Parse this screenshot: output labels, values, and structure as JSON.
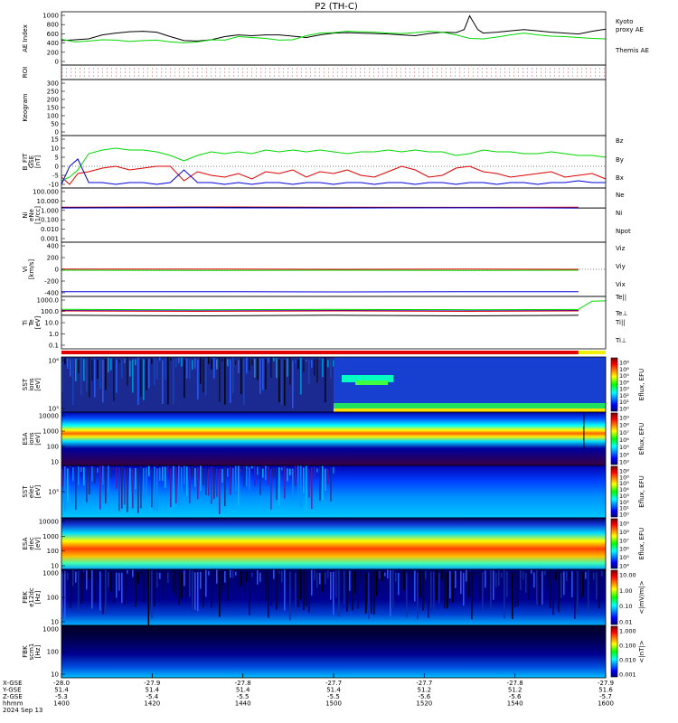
{
  "title": "P2 (TH-C)",
  "chart_data": [
    {
      "panel": "ae",
      "type": "line",
      "ylabel": "AE Index",
      "yticks": [
        "1000",
        "800",
        "600",
        "400",
        "200",
        "0"
      ],
      "legend": [
        {
          "label": "Kyoto",
          "color": "#00d800"
        },
        {
          "label": "proxy AE",
          "color": "#00d800"
        },
        {
          "label": "Themis AE",
          "color": "#000000"
        }
      ],
      "series": [
        {
          "name": "Themis AE",
          "color": "#000000",
          "x": [
            1400,
            1405,
            1410,
            1415,
            1420,
            1425,
            1430,
            1435,
            1440,
            1445,
            1450,
            1455,
            1460,
            1465,
            1470,
            1475,
            1480,
            1485,
            1490,
            1495,
            1500,
            1505,
            1510,
            1515,
            1520,
            1525,
            1530,
            1535,
            1540,
            1545,
            1548,
            1550,
            1553,
            1555,
            1560,
            1565,
            1570,
            1575,
            1580,
            1585,
            1590,
            1595,
            1600
          ],
          "y": [
            430,
            450,
            470,
            560,
            600,
            630,
            640,
            620,
            520,
            430,
            420,
            450,
            520,
            560,
            540,
            560,
            560,
            530,
            500,
            560,
            600,
            610,
            600,
            590,
            580,
            560,
            540,
            590,
            620,
            610,
            680,
            990,
            680,
            600,
            620,
            650,
            680,
            650,
            620,
            600,
            580,
            640,
            690
          ]
        },
        {
          "name": "Kyoto proxy AE",
          "color": "#00d800",
          "x": [
            1400,
            1405,
            1410,
            1415,
            1420,
            1425,
            1430,
            1435,
            1440,
            1445,
            1450,
            1455,
            1460,
            1465,
            1470,
            1475,
            1480,
            1485,
            1490,
            1495,
            1500,
            1505,
            1510,
            1515,
            1520,
            1525,
            1530,
            1535,
            1540,
            1545,
            1550,
            1555,
            1560,
            1565,
            1570,
            1575,
            1580,
            1585,
            1590,
            1595,
            1600
          ],
          "y": [
            460,
            400,
            420,
            450,
            440,
            410,
            430,
            440,
            400,
            380,
            400,
            450,
            440,
            520,
            500,
            480,
            440,
            450,
            540,
            600,
            610,
            640,
            630,
            620,
            600,
            590,
            610,
            640,
            620,
            560,
            480,
            470,
            510,
            560,
            600,
            560,
            530,
            520,
            500,
            480,
            470
          ]
        }
      ]
    },
    {
      "panel": "roi",
      "type": "line",
      "ylabel": "ROI"
    },
    {
      "panel": "keogram",
      "type": "heatmap",
      "ylabel": "Keogram",
      "yticks": [
        "300",
        "250",
        "200",
        "150",
        "100",
        "50",
        "0"
      ]
    },
    {
      "panel": "bfield",
      "type": "line",
      "ylabel": [
        "B_FIT",
        "GSE",
        "[nT]"
      ],
      "yticks": [
        "15",
        "10",
        "5",
        "0",
        "-5",
        "-10"
      ],
      "legend": [
        {
          "label": "Bz",
          "color": "#e00000"
        },
        {
          "label": "By",
          "color": "#00d800"
        },
        {
          "label": "Bx",
          "color": "#0000e0"
        }
      ],
      "series": [
        {
          "name": "Bz",
          "color": "#e00000",
          "x": [
            1400,
            1403,
            1406,
            1410,
            1415,
            1420,
            1425,
            1430,
            1435,
            1440,
            1445,
            1450,
            1455,
            1460,
            1465,
            1470,
            1475,
            1480,
            1485,
            1490,
            1495,
            1500,
            1505,
            1510,
            1515,
            1520,
            1525,
            1530,
            1535,
            1540,
            1545,
            1550,
            1555,
            1560,
            1565,
            1570,
            1575,
            1580,
            1585,
            1590,
            1595,
            1600
          ],
          "y": [
            -6,
            -10,
            -4,
            -3,
            -1,
            0,
            -2,
            -1,
            0,
            0,
            -8,
            -3,
            -5,
            -6,
            -4,
            -7,
            -3,
            -4,
            -2,
            -6,
            -3,
            -4,
            -2,
            -5,
            -6,
            -3,
            0,
            -2,
            -6,
            -5,
            -1,
            0,
            -3,
            -4,
            -6,
            -5,
            -4,
            -3,
            -6,
            -5,
            -4,
            -7
          ]
        },
        {
          "name": "By",
          "color": "#00d800",
          "x": [
            1400,
            1403,
            1406,
            1410,
            1415,
            1420,
            1425,
            1430,
            1435,
            1440,
            1445,
            1450,
            1455,
            1460,
            1465,
            1470,
            1475,
            1480,
            1485,
            1490,
            1495,
            1500,
            1505,
            1510,
            1515,
            1520,
            1525,
            1530,
            1535,
            1540,
            1545,
            1550,
            1555,
            1560,
            1565,
            1570,
            1575,
            1580,
            1585,
            1590,
            1595,
            1600
          ],
          "y": [
            -8,
            -6,
            -2,
            7,
            9,
            10,
            9,
            9,
            8,
            6,
            3,
            6,
            8,
            7,
            8,
            7,
            9,
            8,
            9,
            8,
            9,
            8,
            7,
            8,
            8,
            9,
            8,
            9,
            8,
            8,
            6,
            7,
            9,
            8,
            8,
            7,
            7,
            8,
            7,
            6,
            6,
            5
          ]
        },
        {
          "name": "Bx",
          "color": "#0000e0",
          "x": [
            1400,
            1403,
            1406,
            1410,
            1415,
            1420,
            1425,
            1430,
            1435,
            1440,
            1445,
            1450,
            1455,
            1460,
            1465,
            1470,
            1475,
            1480,
            1485,
            1490,
            1495,
            1500,
            1505,
            1510,
            1515,
            1520,
            1525,
            1530,
            1535,
            1540,
            1545,
            1550,
            1555,
            1560,
            1565,
            1570,
            1575,
            1580,
            1585,
            1590,
            1595,
            1600
          ],
          "y": [
            -10,
            0,
            4,
            -9,
            -9,
            -10,
            -9,
            -9,
            -10,
            -9,
            -2,
            -9,
            -9,
            -10,
            -9,
            -10,
            -9,
            -9,
            -10,
            -9,
            -9,
            -10,
            -9,
            -9,
            -10,
            -9,
            -9,
            -10,
            -9,
            -9,
            -10,
            -9,
            -9,
            -10,
            -9,
            -9,
            -10,
            -9,
            -9,
            -8,
            -9,
            -9
          ]
        }
      ]
    },
    {
      "panel": "density",
      "type": "line",
      "ylabel": [
        "Ni",
        "eNe",
        "[1/cc]"
      ],
      "yticks": [
        "100.000",
        "10.000",
        "1.000",
        "0.100",
        "0.010",
        "0.001"
      ],
      "legend": [
        {
          "label": "Ne",
          "color": "#e00000"
        },
        {
          "label": "Ni",
          "color": "#000000"
        },
        {
          "label": "Npot",
          "color": "#0000e0"
        }
      ],
      "series": [
        {
          "name": "Ne",
          "color": "#e00000",
          "x": [
            1400,
            1450,
            1500,
            1550,
            1590
          ],
          "y": [
            2.2,
            2.3,
            2.2,
            2.1,
            2.2
          ]
        },
        {
          "name": "Ni",
          "color": "#000000",
          "x": [
            1400,
            1450,
            1500,
            1550,
            1590,
            1600
          ],
          "y": [
            2.0,
            2.1,
            2.0,
            2.0,
            1.8,
            1.8
          ]
        },
        {
          "name": "Npot",
          "color": "#0000e0",
          "x": [
            1400,
            1450,
            1500,
            1550,
            1590
          ],
          "y": [
            1.8,
            1.9,
            1.8,
            1.9,
            1.8
          ]
        }
      ]
    },
    {
      "panel": "velocity",
      "type": "line",
      "ylabel": [
        "Vi",
        "[km/s]"
      ],
      "yticks": [
        "400",
        "200",
        "0",
        "-200",
        "-400"
      ],
      "legend": [
        {
          "label": "Viz",
          "color": "#e00000"
        },
        {
          "label": "Viy",
          "color": "#00d800"
        },
        {
          "label": "Vix",
          "color": "#0000e0"
        }
      ],
      "series": [
        {
          "name": "Viz",
          "color": "#e00000",
          "x": [
            1400,
            1450,
            1500,
            1550,
            1590
          ],
          "y": [
            5,
            5,
            0,
            5,
            0
          ]
        },
        {
          "name": "Viy",
          "color": "#00d800",
          "x": [
            1400,
            1450,
            1500,
            1550,
            1590
          ],
          "y": [
            -15,
            -20,
            -15,
            -20,
            -15
          ]
        },
        {
          "name": "Vix",
          "color": "#0000e0",
          "x": [
            1400,
            1450,
            1500,
            1550,
            1590
          ],
          "y": [
            -380,
            -380,
            -385,
            -380,
            -380
          ]
        }
      ]
    },
    {
      "panel": "temperature",
      "type": "line",
      "ylabel": [
        "Ti",
        "Te",
        "[eV]"
      ],
      "yticks": [
        "1000.0",
        "100.0",
        "10.0",
        "1.0",
        "0.1"
      ],
      "legend": [
        {
          "label": "Te||",
          "color": "#000000"
        },
        {
          "label": "Te⊥",
          "color": "#e00000"
        },
        {
          "label": "Ti||",
          "color": "#00d800"
        },
        {
          "label": "Ti⊥",
          "color": "#0000e0"
        }
      ],
      "series": [
        {
          "name": "Ti||",
          "color": "#00d800",
          "x": [
            1400,
            1450,
            1500,
            1550,
            1590,
            1595,
            1600
          ],
          "y": [
            150,
            140,
            150,
            140,
            150,
            800,
            850
          ]
        },
        {
          "name": "Ti⊥",
          "color": "#0000e0",
          "x": [
            1400,
            1450,
            1500,
            1550,
            1590
          ],
          "y": [
            120,
            110,
            120,
            110,
            120
          ]
        },
        {
          "name": "Te⊥",
          "color": "#e00000",
          "x": [
            1400,
            1450,
            1500,
            1550,
            1590
          ],
          "y": [
            110,
            100,
            110,
            100,
            110
          ]
        },
        {
          "name": "Te||",
          "color": "#000000",
          "x": [
            1400,
            1450,
            1500,
            1550,
            1590
          ],
          "y": [
            45,
            40,
            45,
            40,
            45
          ]
        }
      ]
    },
    {
      "panel": "sst_ion",
      "type": "heatmap",
      "ylabel": [
        "SST",
        "ions",
        "[eV]"
      ],
      "yticks": [
        "10⁶",
        "10⁵"
      ],
      "colorbar": [
        "10⁸",
        "10⁶",
        "10⁵",
        "10⁴",
        "10³",
        "10²",
        "10¹",
        "10⁰"
      ],
      "cbar_label": "Eflux, EFU"
    },
    {
      "panel": "esa_ion",
      "type": "heatmap",
      "ylabel": [
        "ESA",
        "ions",
        "[eV]"
      ],
      "yticks": [
        "10000",
        "1000",
        "100",
        "10"
      ],
      "colorbar": [
        "10⁹",
        "10⁸",
        "10⁷",
        "10⁶",
        "10⁵",
        "10⁴",
        "10³"
      ],
      "cbar_label": "Eflux, EFU"
    },
    {
      "panel": "sst_elec",
      "type": "heatmap",
      "ylabel": [
        "SST",
        "elec",
        "[eV]"
      ],
      "yticks": [
        "10⁵"
      ],
      "colorbar": [
        "10⁸",
        "10⁶",
        "10⁵",
        "10⁴",
        "10³",
        "10²",
        "10¹",
        "10⁰"
      ],
      "cbar_label": "Eflux, EFU"
    },
    {
      "panel": "esa_elec",
      "type": "heatmap",
      "ylabel": [
        "ESA",
        "elec",
        "[eV]"
      ],
      "yticks": [
        "10000",
        "1000",
        "100",
        "10"
      ],
      "colorbar": [
        "10⁹",
        "10⁸",
        "10⁷",
        "10⁶",
        "10⁵",
        "10⁴"
      ],
      "cbar_label": "Eflux, EFU"
    },
    {
      "panel": "fbk_e",
      "type": "heatmap",
      "ylabel": [
        "FBK",
        "e12dc",
        "[Hz]"
      ],
      "yticks": [
        "1000",
        "100",
        "10"
      ],
      "colorbar": [
        "10.00",
        "1.00",
        "0.10",
        "0.01"
      ],
      "cbar_label": "<|mV/m|>"
    },
    {
      "panel": "fbk_b",
      "type": "heatmap",
      "ylabel": [
        "FBK",
        "scm1",
        "[Hz]"
      ],
      "yticks": [
        "1000",
        "100",
        "10"
      ],
      "colorbar": [
        "1.000",
        "0.100",
        "0.010",
        "0.001"
      ],
      "cbar_label": "<|nT|>"
    }
  ],
  "xaxis": {
    "row_labels": [
      "X-GSE",
      "Y-GSE",
      "Z-GSE",
      "hhmm",
      "2024 Sep 13"
    ],
    "columns": [
      {
        "x": "-28.0",
        "y": "51.4",
        "z": "-5.3",
        "t": "1400"
      },
      {
        "x": "-27.9",
        "y": "51.4",
        "z": "-5.4",
        "t": "1420"
      },
      {
        "x": "-27.8",
        "y": "51.4",
        "z": "-5.5",
        "t": "1440"
      },
      {
        "x": "-27.7",
        "y": "51.4",
        "z": "-5.5",
        "t": "1500"
      },
      {
        "x": "-27.7",
        "y": "51.2",
        "z": "-5.6",
        "t": "1520"
      },
      {
        "x": "-27.8",
        "y": "51.2",
        "z": "-5.6",
        "t": "1540"
      },
      {
        "x": "-27.9",
        "y": "51.6",
        "z": "-5.7",
        "t": "1600"
      }
    ]
  }
}
